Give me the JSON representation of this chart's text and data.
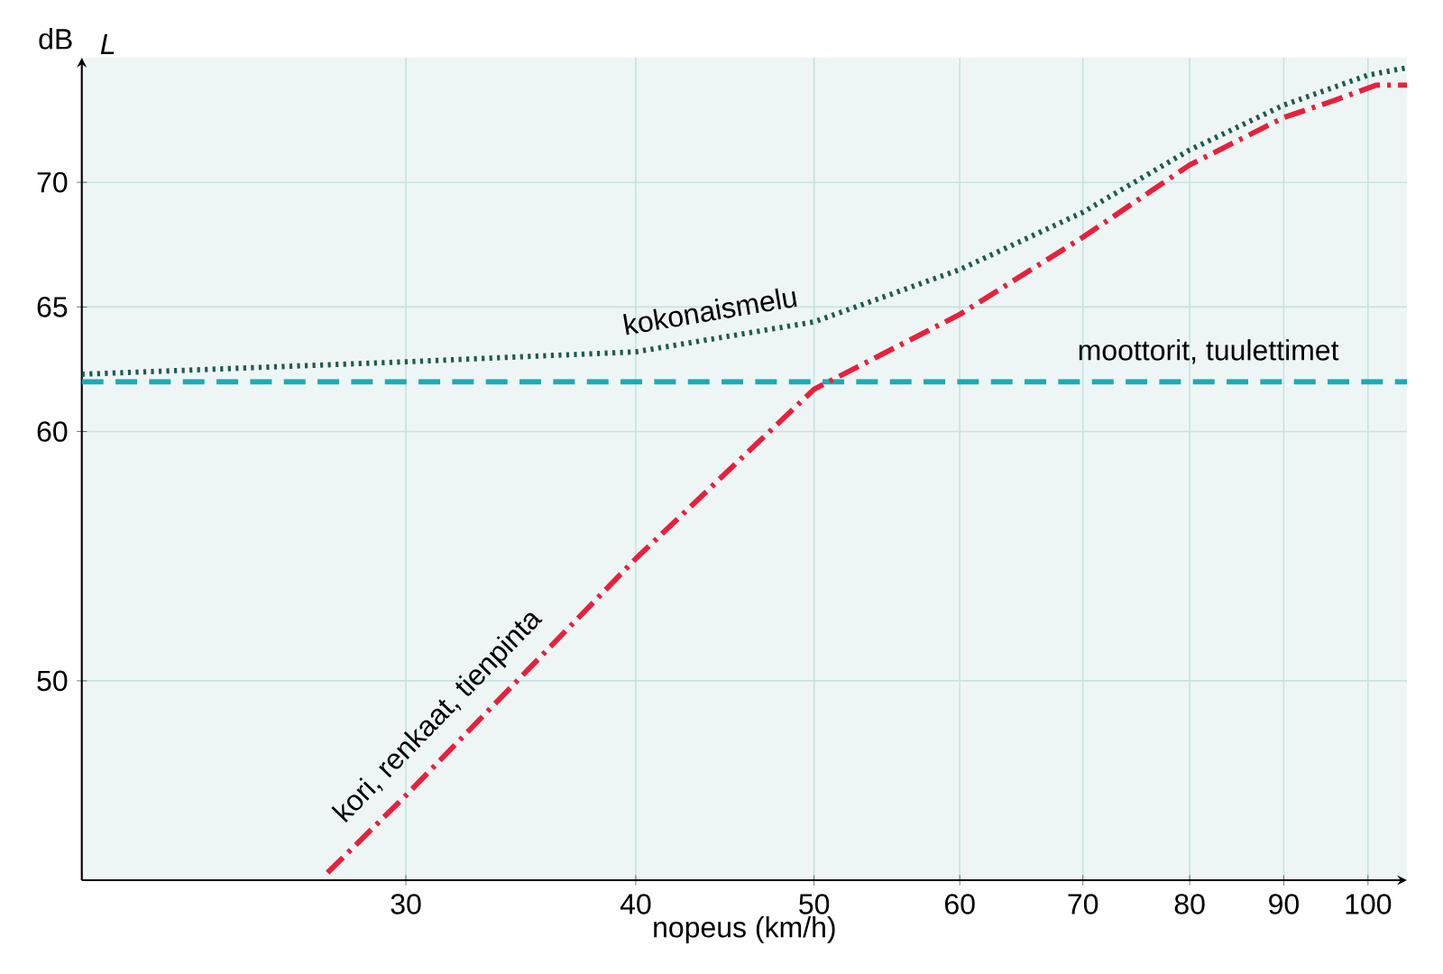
{
  "chart_data": {
    "type": "line",
    "xlabel": "nopeus (km/h)",
    "ylabel": "L",
    "annotations": [
      "dB"
    ],
    "log": "x",
    "grid": true,
    "marker": "none",
    "xlim": [
      20,
      105
    ],
    "ylim": [
      42,
      75
    ],
    "xticks": [
      30,
      40,
      50,
      60,
      70,
      80,
      90,
      100
    ],
    "yticks": [
      50,
      60,
      65,
      70
    ],
    "series": [
      {
        "name": "kokonaismelu",
        "color": "#1f5a4f",
        "line_style": "dotted",
        "x": [
          20,
          30,
          40,
          50,
          60,
          70,
          80,
          90,
          100,
          105
        ],
        "values": [
          62.3,
          62.8,
          63.2,
          64.4,
          66.5,
          68.8,
          71.3,
          73.1,
          74.3,
          74.6
        ]
      },
      {
        "name": "moottorit, tuulettimet",
        "color": "#1aabb8",
        "line_style": "dashed",
        "x": [
          20,
          105
        ],
        "values": [
          62,
          62
        ]
      },
      {
        "name": "kori, renkaat, tienpinta",
        "color": "#e8203c",
        "line_style": "dashdot",
        "x": [
          27.2,
          30,
          40,
          50,
          60,
          70,
          80,
          90,
          96,
          101,
          105
        ],
        "values": [
          42.3,
          45.4,
          54.9,
          61.7,
          64.7,
          67.8,
          70.7,
          72.6,
          73.3,
          73.9,
          73.9
        ]
      }
    ]
  }
}
